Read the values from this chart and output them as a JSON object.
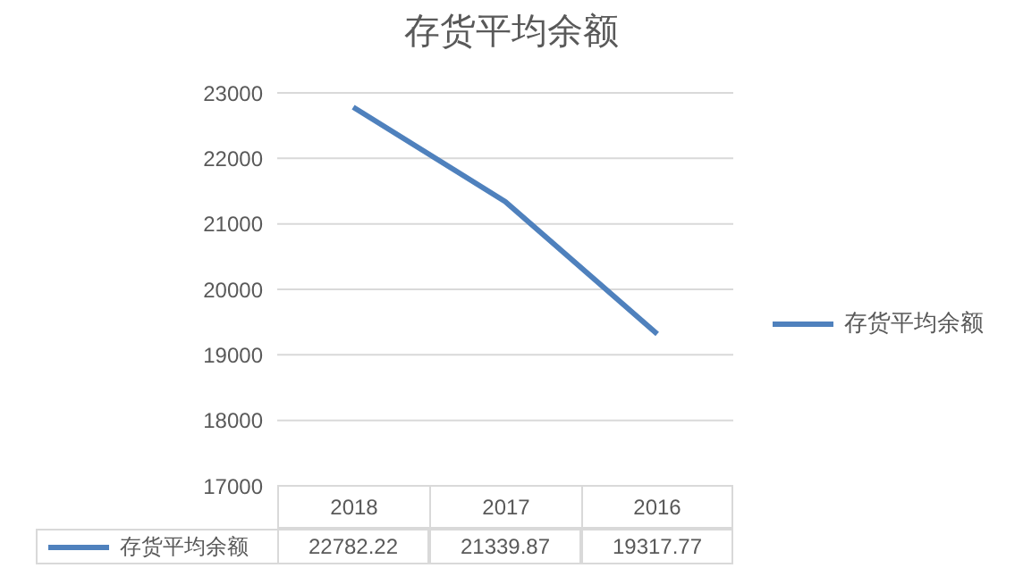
{
  "chart_data": {
    "type": "line",
    "title": "存货平均余额",
    "categories": [
      "2018",
      "2017",
      "2016"
    ],
    "series": [
      {
        "name": "存货平均余额",
        "color": "#4f81bd",
        "values": [
          22782.22,
          21339.87,
          19317.77
        ]
      }
    ],
    "ylim": [
      17000,
      23000
    ],
    "yticks": [
      17000,
      18000,
      19000,
      20000,
      21000,
      22000,
      23000
    ],
    "grid": "y",
    "legend": "right",
    "data_labels": true,
    "marker": "none"
  }
}
